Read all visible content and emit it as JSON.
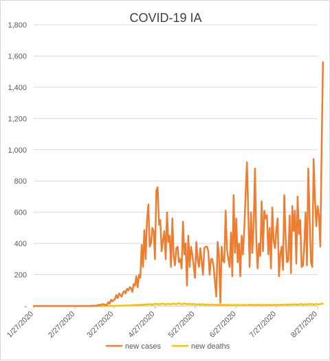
{
  "chart_data": {
    "type": "line",
    "title": "COVID-19 IA",
    "xlabel": "",
    "ylabel": "",
    "ylim": [
      0,
      1800
    ],
    "yticks": [
      "-",
      "200",
      "400",
      "600",
      "800",
      "1,000",
      "1,200",
      "1,400",
      "1,600",
      "1,800"
    ],
    "ytick_values": [
      0,
      200,
      400,
      600,
      800,
      1000,
      1200,
      1400,
      1600,
      1800
    ],
    "xticks": [
      "1/27/2020",
      "2/27/2020",
      "3/27/2020",
      "4/27/2020",
      "5/27/2020",
      "6/27/2020",
      "7/27/2020",
      "8/27/2020"
    ],
    "xtick_day_index": [
      0,
      31,
      60,
      91,
      121,
      152,
      182,
      213
    ],
    "grid": true,
    "legend_position": "bottom",
    "series": [
      {
        "name": "new cases",
        "color": "#ED7D31",
        "values": [
          0,
          0,
          0,
          0,
          0,
          0,
          0,
          0,
          0,
          0,
          0,
          0,
          0,
          0,
          0,
          0,
          0,
          0,
          0,
          0,
          0,
          0,
          0,
          0,
          0,
          0,
          0,
          0,
          0,
          0,
          0,
          0,
          0,
          0,
          0,
          0,
          0,
          0,
          0,
          0,
          0,
          0,
          0,
          0,
          3,
          0,
          2,
          1,
          5,
          8,
          4,
          10,
          12,
          10,
          6,
          8,
          25,
          15,
          40,
          30,
          38,
          45,
          70,
          50,
          80,
          70,
          60,
          85,
          95,
          80,
          110,
          100,
          120,
          115,
          90,
          140,
          130,
          190,
          120,
          200,
          180,
          390,
          250,
          485,
          300,
          550,
          650,
          380,
          400,
          500,
          480,
          300,
          740,
          760,
          520,
          550,
          350,
          420,
          480,
          300,
          600,
          410,
          450,
          250,
          560,
          320,
          260,
          370,
          380,
          280,
          300,
          240,
          540,
          330,
          400,
          130,
          450,
          250,
          380,
          330,
          260,
          180,
          410,
          300,
          250,
          370,
          290,
          200,
          370,
          380,
          380,
          350,
          200,
          300,
          300,
          250,
          150,
          60,
          410,
          330,
          20,
          380,
          290,
          280,
          610,
          360,
          300,
          250,
          470,
          190,
          710,
          340,
          560,
          280,
          400,
          190,
          450,
          330,
          500,
          720,
          920,
          580,
          250,
          600,
          340,
          510,
          880,
          420,
          240,
          400,
          320,
          670,
          350,
          610,
          560,
          580,
          330,
          500,
          240,
          630,
          420,
          370,
          490,
          560,
          190,
          330,
          380,
          230,
          710,
          440,
          280,
          290,
          580,
          210,
          640,
          480,
          610,
          270,
          700,
          460,
          550,
          250,
          260,
          390,
          600,
          260,
          880,
          560,
          280,
          250,
          940,
          690,
          510,
          640,
          580,
          380,
          1000,
          1560
        ]
      },
      {
        "name": "new deaths",
        "color": "#FFC000",
        "values": [
          0,
          0,
          0,
          0,
          0,
          0,
          0,
          0,
          0,
          0,
          0,
          0,
          0,
          0,
          0,
          0,
          0,
          0,
          0,
          0,
          0,
          0,
          0,
          0,
          0,
          0,
          0,
          0,
          0,
          0,
          0,
          0,
          0,
          0,
          0,
          0,
          0,
          0,
          0,
          0,
          0,
          0,
          0,
          0,
          0,
          0,
          0,
          0,
          0,
          0,
          0,
          0,
          0,
          0,
          0,
          0,
          0,
          0,
          1,
          0,
          1,
          1,
          1,
          2,
          1,
          2,
          3,
          2,
          3,
          2,
          4,
          3,
          5,
          4,
          4,
          6,
          5,
          6,
          7,
          8,
          6,
          9,
          7,
          10,
          8,
          11,
          9,
          12,
          10,
          8,
          12,
          14,
          11,
          13,
          10,
          12,
          14,
          16,
          12,
          10,
          13,
          15,
          12,
          11,
          14,
          16,
          13,
          12,
          15,
          18,
          14,
          12,
          13,
          16,
          15,
          11,
          14,
          12,
          13,
          10,
          12,
          11,
          9,
          10,
          12,
          8,
          11,
          10,
          9,
          8,
          10,
          7,
          9,
          8,
          10,
          7,
          8,
          6,
          9,
          7,
          8,
          6,
          7,
          8,
          5,
          7,
          6,
          8,
          5,
          7,
          6,
          5,
          8,
          6,
          7,
          5,
          6,
          8,
          7,
          5,
          6,
          7,
          8,
          9,
          6,
          7,
          5,
          8,
          6,
          9,
          7,
          5,
          8,
          6,
          7,
          9,
          6,
          8,
          7,
          5,
          9,
          6,
          8,
          7,
          6,
          9,
          8,
          7,
          10,
          8,
          9,
          7,
          11,
          8,
          10,
          9,
          12,
          8,
          10,
          9,
          11,
          13,
          8,
          10,
          12,
          9,
          11,
          14,
          10,
          12,
          9,
          11,
          13,
          10,
          12,
          11,
          16,
          14
        ]
      }
    ]
  }
}
